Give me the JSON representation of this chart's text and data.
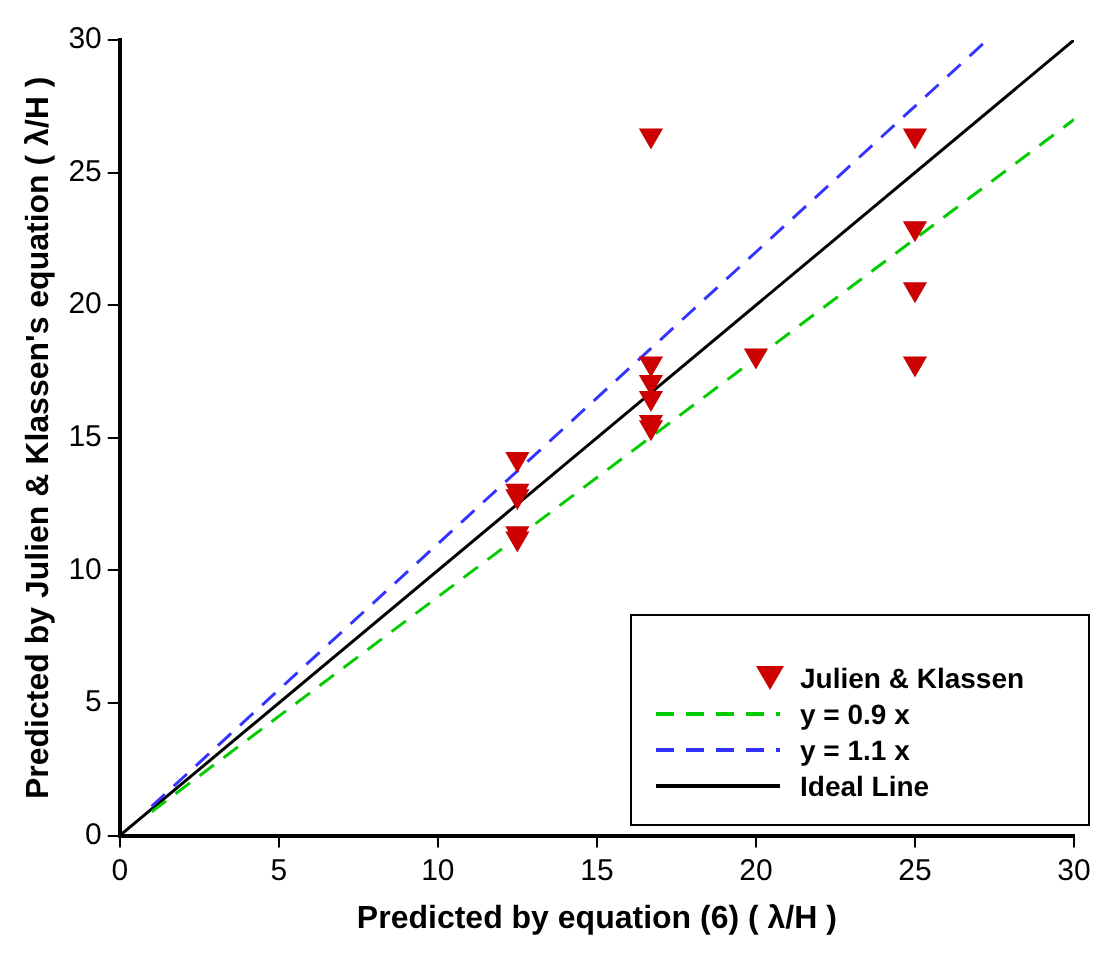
{
  "chart_data": {
    "type": "scatter",
    "xlabel": "Predicted by equation (6) ( λ/H )",
    "ylabel": "Predicted by Julien & Klassen's equation ( λ/H )",
    "xlim": [
      0,
      30
    ],
    "ylim": [
      0,
      30
    ],
    "xticks": [
      0,
      5,
      10,
      15,
      20,
      25,
      30
    ],
    "yticks": [
      0,
      5,
      10,
      15,
      20,
      25,
      30
    ],
    "grid": false,
    "legend": "bottom right",
    "series": [
      {
        "name": "Julien & Klassen",
        "type": "scatter",
        "color": "#cc0000",
        "marker": "triangle",
        "x": [
          12.5,
          12.5,
          12.5,
          12.5,
          12.5,
          16.7,
          16.7,
          16.7,
          16.7,
          16.7,
          16.7,
          20,
          25,
          25,
          25,
          25
        ],
        "values": [
          14.2,
          13.0,
          12.8,
          11.4,
          11.2,
          26.4,
          17.8,
          17.1,
          16.5,
          15.6,
          15.4,
          18.1,
          26.4,
          22.9,
          20.6,
          17.8
        ]
      },
      {
        "name": "y = 0.9 x",
        "type": "line",
        "color": "#00cc00",
        "line_style": "dashed",
        "x": [
          1,
          30
        ],
        "values": [
          0.9,
          27
        ]
      },
      {
        "name": "y = 1.1 x",
        "type": "line",
        "color": "#3333ff",
        "line_style": "dashed",
        "x": [
          1,
          27.27
        ],
        "values": [
          1.1,
          30
        ]
      },
      {
        "name": "Ideal Line",
        "type": "line",
        "color": "#000000",
        "line_style": "solid",
        "x": [
          0,
          30
        ],
        "values": [
          0,
          30
        ]
      }
    ]
  }
}
